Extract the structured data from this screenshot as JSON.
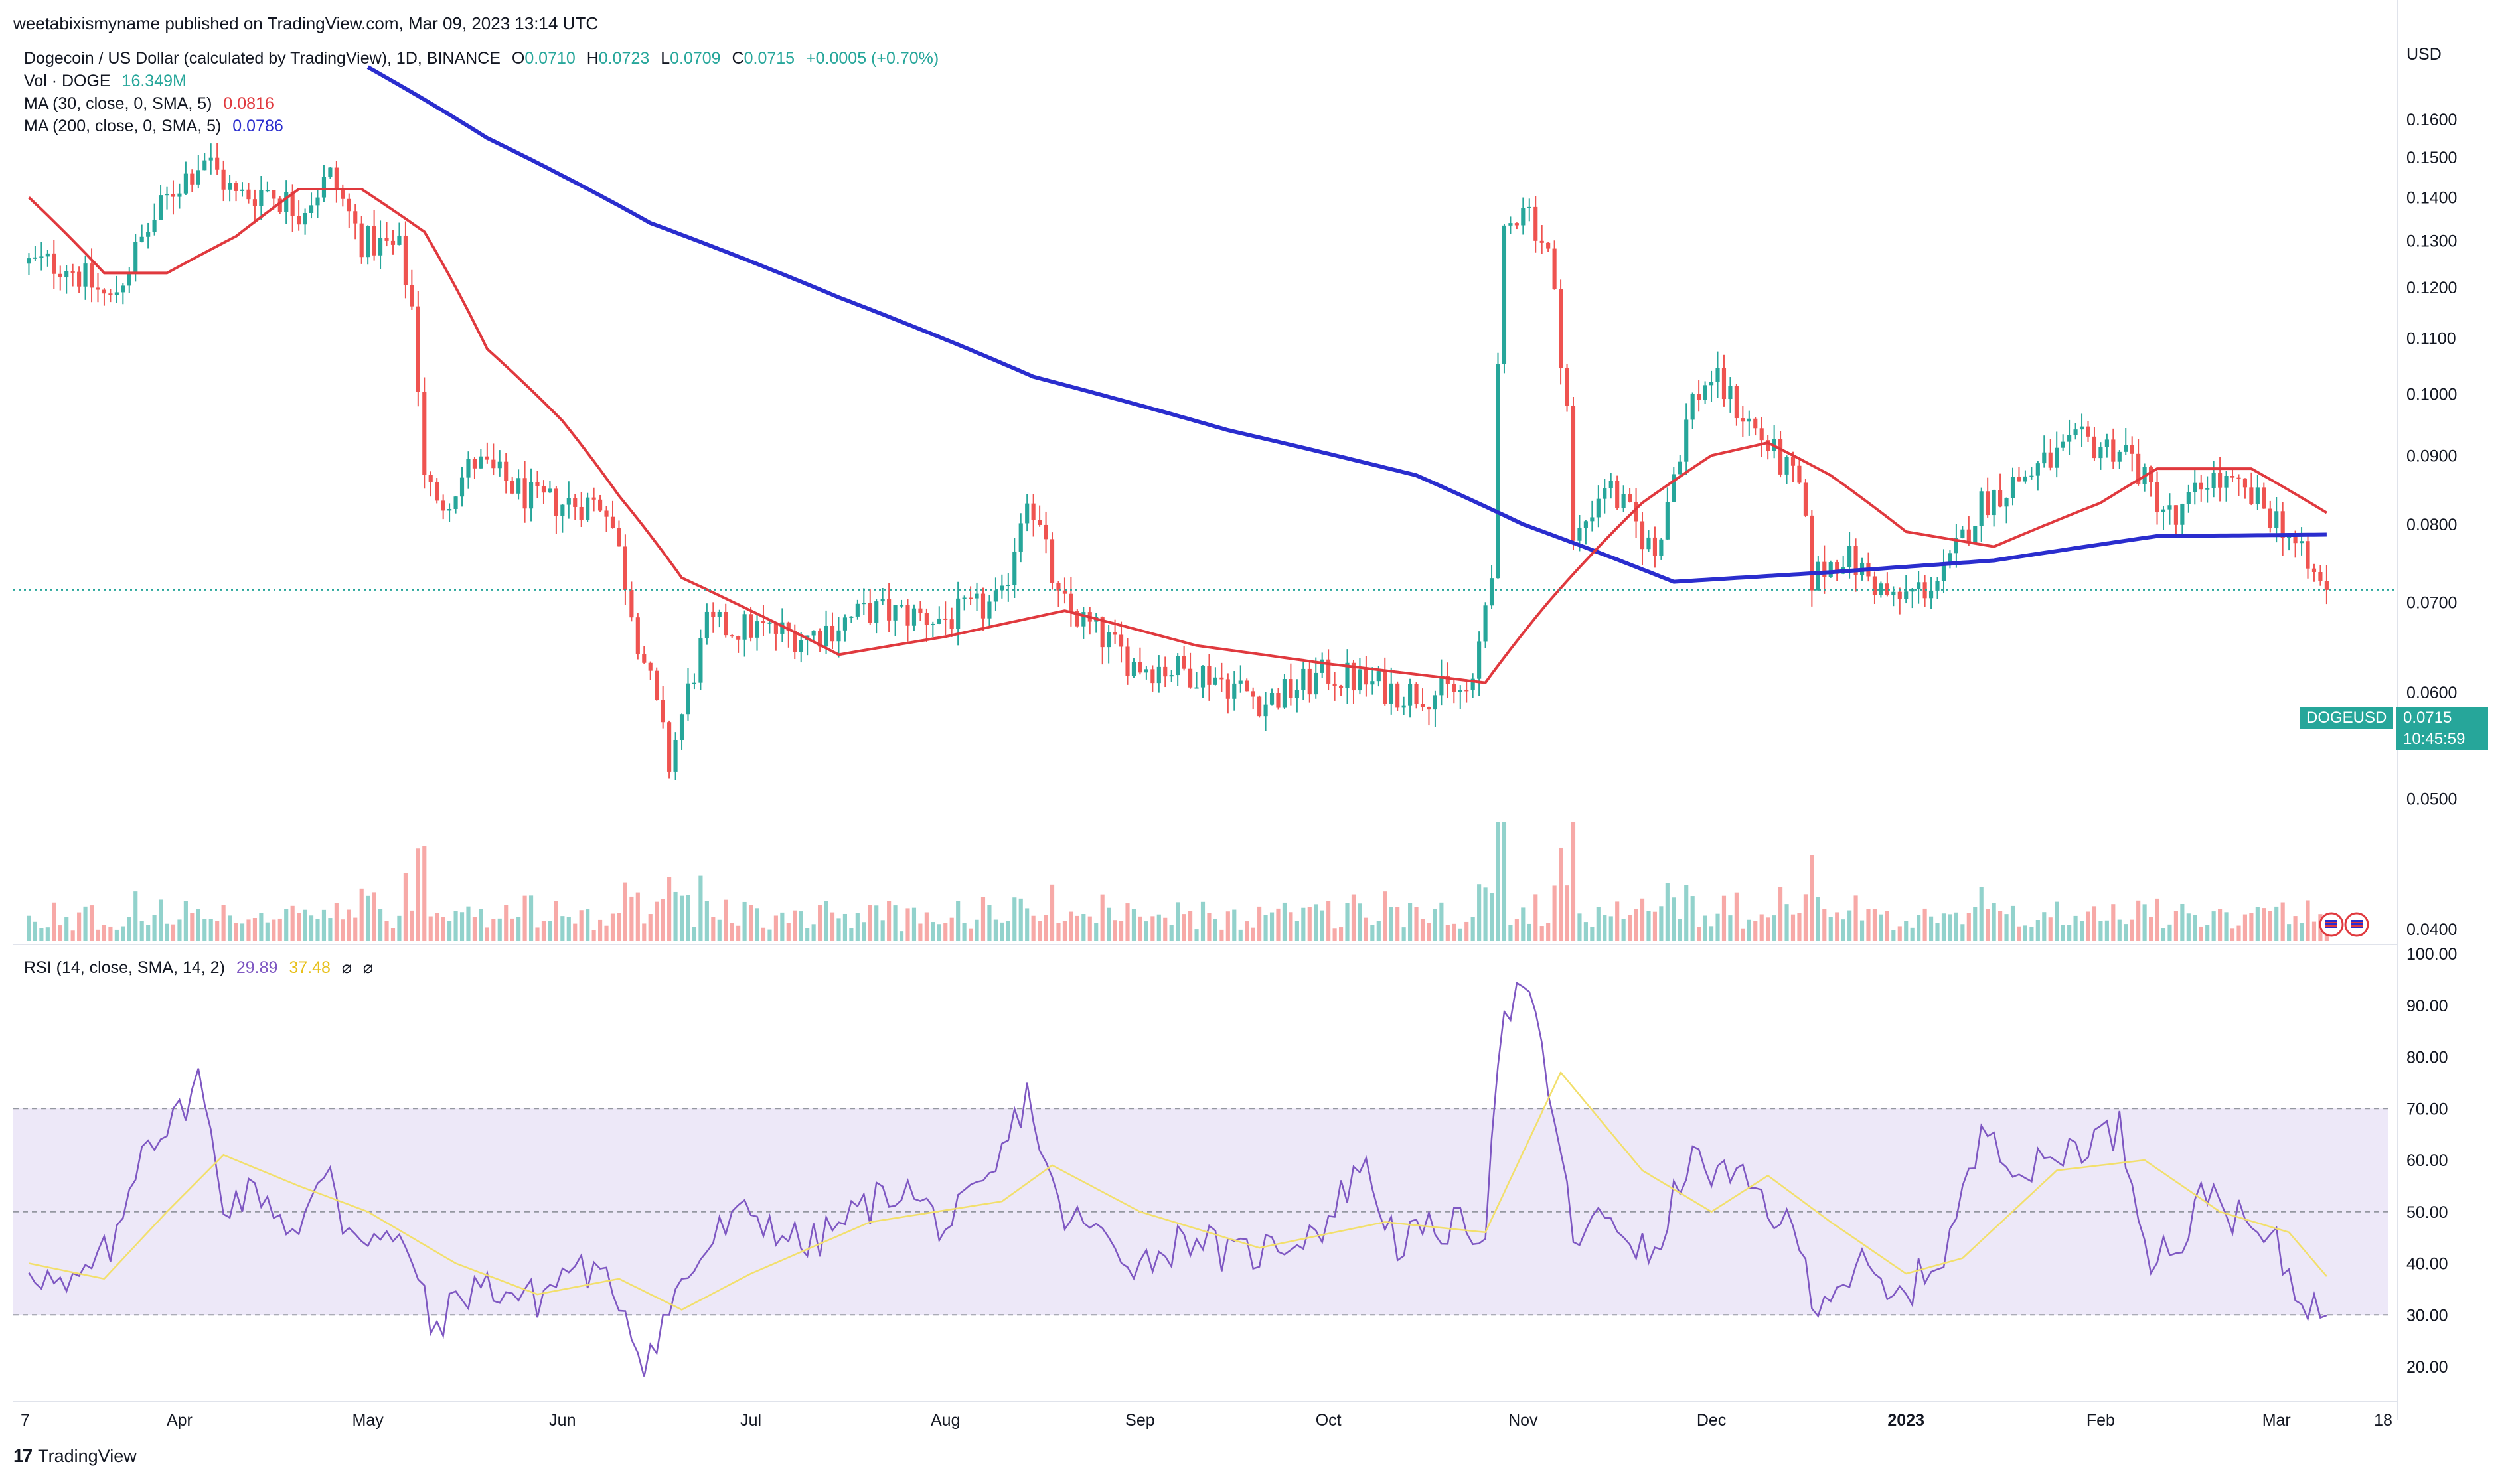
{
  "header": {
    "publisher": "weetabixismyname published on TradingView.com, Mar 09, 2023 13:14 UTC",
    "symbol_title": "Dogecoin / US Dollar (calculated by TradingView), 1D, BINANCE",
    "ohlc": {
      "o_label": "O",
      "o": "0.0710",
      "h_label": "H",
      "h": "0.0723",
      "l_label": "L",
      "l": "0.0709",
      "c_label": "C",
      "c": "0.0715",
      "change": "+0.0005 (+0.70%)"
    },
    "vol_label": "Vol · DOGE",
    "vol_value": "16.349M",
    "ma30_label": "MA (30, close, 0, SMA, 5)",
    "ma30_value": "0.0816",
    "ma200_label": "MA (200, close, 0, SMA, 5)",
    "ma200_value": "0.0786",
    "rsi_label": "RSI (14, close, SMA, 14, 2)",
    "rsi_value": "29.89",
    "rsi_ma_value": "37.48",
    "hidden_icon_1": "⌀",
    "hidden_icon_2": "⌀"
  },
  "axis": {
    "currency": "USD",
    "symbol_badge": "DOGEUSD",
    "last_price": "0.0715",
    "countdown": "10:45:59"
  },
  "footer": {
    "brand": "TradingView",
    "logo_icon": "tradingview-logo-icon"
  },
  "colors": {
    "up": "#26a69a",
    "down": "#ef5350",
    "ma30": "#e0393e",
    "ma200": "#2a2dce",
    "rsi": "#7e57c2",
    "rsi_ma": "#f2df6b",
    "rsi_band": "#ede8f8"
  },
  "chart_data": [
    {
      "type": "candlestick",
      "title": "Dogecoin / US Dollar (calculated by TradingView), 1D, BINANCE",
      "y_axis": {
        "scale": "log",
        "ticks": [
          "0.0400",
          "0.0500",
          "0.0600",
          "0.0700",
          "0.0800",
          "0.0900",
          "0.1000",
          "0.1100",
          "0.1200",
          "0.1300",
          "0.1400",
          "0.1500",
          "0.1600"
        ],
        "ylim": [
          0.0393,
          0.175
        ]
      },
      "x_axis": {
        "ticks": [
          "7",
          "Apr",
          "May",
          "Jun",
          "Jul",
          "Aug",
          "Sep",
          "Oct",
          "Nov",
          "Dec",
          "2023",
          "Feb",
          "Mar",
          "18"
        ]
      },
      "price_anchors": [
        {
          "date": "2022-03-14",
          "close": 0.125
        },
        {
          "date": "2022-03-21",
          "close": 0.117
        },
        {
          "date": "2022-03-26",
          "close": 0.13
        },
        {
          "date": "2022-03-31",
          "close": 0.142
        },
        {
          "date": "2022-04-05",
          "close": 0.15
        },
        {
          "date": "2022-04-10",
          "close": 0.14
        },
        {
          "date": "2022-04-15",
          "close": 0.142
        },
        {
          "date": "2022-04-20",
          "close": 0.137
        },
        {
          "date": "2022-04-25",
          "close": 0.145
        },
        {
          "date": "2022-04-30",
          "close": 0.13
        },
        {
          "date": "2022-05-06",
          "close": 0.128
        },
        {
          "date": "2022-05-08",
          "close": 0.116
        },
        {
          "date": "2022-05-10",
          "close": 0.088
        },
        {
          "date": "2022-05-12",
          "close": 0.082
        },
        {
          "date": "2022-05-18",
          "close": 0.089
        },
        {
          "date": "2022-05-28",
          "close": 0.083
        },
        {
          "date": "2022-06-08",
          "close": 0.083
        },
        {
          "date": "2022-06-13",
          "close": 0.066
        },
        {
          "date": "2022-06-18",
          "close": 0.053
        },
        {
          "date": "2022-06-24",
          "close": 0.067
        },
        {
          "date": "2022-07-01",
          "close": 0.067
        },
        {
          "date": "2022-07-10",
          "close": 0.066
        },
        {
          "date": "2022-07-20",
          "close": 0.069
        },
        {
          "date": "2022-08-01",
          "close": 0.068
        },
        {
          "date": "2022-08-10",
          "close": 0.07
        },
        {
          "date": "2022-08-14",
          "close": 0.085
        },
        {
          "date": "2022-08-19",
          "close": 0.07
        },
        {
          "date": "2022-08-31",
          "close": 0.063
        },
        {
          "date": "2022-09-12",
          "close": 0.062
        },
        {
          "date": "2022-09-21",
          "close": 0.059
        },
        {
          "date": "2022-10-01",
          "close": 0.062
        },
        {
          "date": "2022-10-13",
          "close": 0.06
        },
        {
          "date": "2022-10-24",
          "close": 0.06
        },
        {
          "date": "2022-10-27",
          "close": 0.075
        },
        {
          "date": "2022-10-29",
          "close": 0.13
        },
        {
          "date": "2022-11-01",
          "close": 0.14
        },
        {
          "date": "2022-11-05",
          "close": 0.127
        },
        {
          "date": "2022-11-08",
          "close": 0.098
        },
        {
          "date": "2022-11-09",
          "close": 0.077
        },
        {
          "date": "2022-11-14",
          "close": 0.086
        },
        {
          "date": "2022-11-22",
          "close": 0.076
        },
        {
          "date": "2022-11-28",
          "close": 0.099
        },
        {
          "date": "2022-12-01",
          "close": 0.103
        },
        {
          "date": "2022-12-08",
          "close": 0.094
        },
        {
          "date": "2022-12-15",
          "close": 0.085
        },
        {
          "date": "2022-12-17",
          "close": 0.073
        },
        {
          "date": "2022-12-22",
          "close": 0.076
        },
        {
          "date": "2022-12-30",
          "close": 0.07
        },
        {
          "date": "2023-01-07",
          "close": 0.073
        },
        {
          "date": "2023-01-13",
          "close": 0.083
        },
        {
          "date": "2023-01-20",
          "close": 0.087
        },
        {
          "date": "2023-01-29",
          "close": 0.092
        },
        {
          "date": "2023-02-05",
          "close": 0.091
        },
        {
          "date": "2023-02-08",
          "close": 0.086
        },
        {
          "date": "2023-02-13",
          "close": 0.08
        },
        {
          "date": "2023-02-18",
          "close": 0.087
        },
        {
          "date": "2023-02-26",
          "close": 0.083
        },
        {
          "date": "2023-03-02",
          "close": 0.08
        },
        {
          "date": "2023-03-06",
          "close": 0.074
        },
        {
          "date": "2023-03-09",
          "close": 0.0715
        }
      ],
      "ma30_anchors": [
        {
          "date": "2022-03-08",
          "value": 0.14
        },
        {
          "date": "2022-03-20",
          "value": 0.123
        },
        {
          "date": "2022-03-30",
          "value": 0.123
        },
        {
          "date": "2022-04-10",
          "value": 0.131
        },
        {
          "date": "2022-04-20",
          "value": 0.142
        },
        {
          "date": "2022-04-30",
          "value": 0.142
        },
        {
          "date": "2022-05-10",
          "value": 0.132
        },
        {
          "date": "2022-05-20",
          "value": 0.108
        },
        {
          "date": "2022-06-01",
          "value": 0.0955
        },
        {
          "date": "2022-06-10",
          "value": 0.084
        },
        {
          "date": "2022-06-20",
          "value": 0.073
        },
        {
          "date": "2022-07-01",
          "value": 0.069
        },
        {
          "date": "2022-07-15",
          "value": 0.064
        },
        {
          "date": "2022-08-01",
          "value": 0.066
        },
        {
          "date": "2022-08-20",
          "value": 0.069
        },
        {
          "date": "2022-09-10",
          "value": 0.065
        },
        {
          "date": "2022-10-01",
          "value": 0.063
        },
        {
          "date": "2022-10-26",
          "value": 0.061
        },
        {
          "date": "2022-11-05",
          "value": 0.07
        },
        {
          "date": "2022-11-20",
          "value": 0.083
        },
        {
          "date": "2022-12-01",
          "value": 0.09
        },
        {
          "date": "2022-12-10",
          "value": 0.092
        },
        {
          "date": "2022-12-20",
          "value": 0.087
        },
        {
          "date": "2023-01-01",
          "value": 0.079
        },
        {
          "date": "2023-01-15",
          "value": 0.077
        },
        {
          "date": "2023-02-01",
          "value": 0.083
        },
        {
          "date": "2023-02-10",
          "value": 0.088
        },
        {
          "date": "2023-02-25",
          "value": 0.088
        },
        {
          "date": "2023-03-09",
          "value": 0.0816
        }
      ],
      "ma200_anchors": [
        {
          "date": "2022-05-01",
          "value": 0.175
        },
        {
          "date": "2022-05-20",
          "value": 0.155
        },
        {
          "date": "2022-06-15",
          "value": 0.134
        },
        {
          "date": "2022-07-15",
          "value": 0.118
        },
        {
          "date": "2022-08-15",
          "value": 0.103
        },
        {
          "date": "2022-09-15",
          "value": 0.094
        },
        {
          "date": "2022-10-15",
          "value": 0.087
        },
        {
          "date": "2022-11-01",
          "value": 0.08
        },
        {
          "date": "2022-11-25",
          "value": 0.0725
        },
        {
          "date": "2022-12-20",
          "value": 0.0737
        },
        {
          "date": "2023-01-15",
          "value": 0.0752
        },
        {
          "date": "2023-02-10",
          "value": 0.0784
        },
        {
          "date": "2023-03-09",
          "value": 0.0786
        }
      ],
      "last_price": 0.0715,
      "volume_last": "16.349M"
    },
    {
      "type": "line",
      "title": "RSI (14, close, SMA, 14, 2)",
      "y_axis": {
        "ticks": [
          "20.00",
          "30.00",
          "40.00",
          "50.00",
          "60.00",
          "70.00",
          "80.00",
          "90.00",
          "100.00"
        ],
        "ylim": [
          15,
          100
        ]
      },
      "bands": {
        "upper": 70,
        "middle": 50,
        "lower": 30
      },
      "rsi_anchors": [
        {
          "date": "2022-03-08",
          "value": 40
        },
        {
          "date": "2022-03-14",
          "value": 34
        },
        {
          "date": "2022-03-22",
          "value": 44
        },
        {
          "date": "2022-03-26",
          "value": 64
        },
        {
          "date": "2022-03-31",
          "value": 67
        },
        {
          "date": "2022-04-04",
          "value": 76
        },
        {
          "date": "2022-04-08",
          "value": 52
        },
        {
          "date": "2022-04-14",
          "value": 54
        },
        {
          "date": "2022-04-20",
          "value": 45
        },
        {
          "date": "2022-04-25",
          "value": 60
        },
        {
          "date": "2022-04-27",
          "value": 48
        },
        {
          "date": "2022-05-08",
          "value": 42
        },
        {
          "date": "2022-05-11",
          "value": 27
        },
        {
          "date": "2022-05-18",
          "value": 36
        },
        {
          "date": "2022-05-28",
          "value": 33
        },
        {
          "date": "2022-06-03",
          "value": 40
        },
        {
          "date": "2022-06-10",
          "value": 34
        },
        {
          "date": "2022-06-14",
          "value": 21
        },
        {
          "date": "2022-06-20",
          "value": 36
        },
        {
          "date": "2022-06-26",
          "value": 46
        },
        {
          "date": "2022-07-01",
          "value": 50
        },
        {
          "date": "2022-07-10",
          "value": 43
        },
        {
          "date": "2022-07-18",
          "value": 50
        },
        {
          "date": "2022-07-25",
          "value": 55
        },
        {
          "date": "2022-08-01",
          "value": 47
        },
        {
          "date": "2022-08-08",
          "value": 55
        },
        {
          "date": "2022-08-14",
          "value": 73
        },
        {
          "date": "2022-08-19",
          "value": 50
        },
        {
          "date": "2022-08-25",
          "value": 46
        },
        {
          "date": "2022-09-01",
          "value": 40
        },
        {
          "date": "2022-09-10",
          "value": 46
        },
        {
          "date": "2022-09-15",
          "value": 41
        },
        {
          "date": "2022-09-22",
          "value": 43
        },
        {
          "date": "2022-10-01",
          "value": 48
        },
        {
          "date": "2022-10-06",
          "value": 60
        },
        {
          "date": "2022-10-12",
          "value": 44
        },
        {
          "date": "2022-10-20",
          "value": 47
        },
        {
          "date": "2022-10-26",
          "value": 47
        },
        {
          "date": "2022-10-28",
          "value": 82
        },
        {
          "date": "2022-10-31",
          "value": 93
        },
        {
          "date": "2022-11-03",
          "value": 87
        },
        {
          "date": "2022-11-06",
          "value": 68
        },
        {
          "date": "2022-11-09",
          "value": 45
        },
        {
          "date": "2022-11-15",
          "value": 49
        },
        {
          "date": "2022-11-22",
          "value": 40
        },
        {
          "date": "2022-11-27",
          "value": 60
        },
        {
          "date": "2022-12-01",
          "value": 58
        },
        {
          "date": "2022-12-08",
          "value": 54
        },
        {
          "date": "2022-12-15",
          "value": 44
        },
        {
          "date": "2022-12-17",
          "value": 33
        },
        {
          "date": "2022-12-25",
          "value": 39
        },
        {
          "date": "2022-12-30",
          "value": 32
        },
        {
          "date": "2023-01-07",
          "value": 42
        },
        {
          "date": "2023-01-14",
          "value": 67
        },
        {
          "date": "2023-01-20",
          "value": 57
        },
        {
          "date": "2023-01-28",
          "value": 63
        },
        {
          "date": "2023-02-04",
          "value": 66
        },
        {
          "date": "2023-02-09",
          "value": 42
        },
        {
          "date": "2023-02-14",
          "value": 44
        },
        {
          "date": "2023-02-18",
          "value": 55
        },
        {
          "date": "2023-02-24",
          "value": 47
        },
        {
          "date": "2023-03-01",
          "value": 43
        },
        {
          "date": "2023-03-04",
          "value": 35
        },
        {
          "date": "2023-03-09",
          "value": 29.89
        }
      ],
      "rsi_ma_anchors": [
        {
          "date": "2022-03-08",
          "value": 40
        },
        {
          "date": "2022-03-20",
          "value": 37
        },
        {
          "date": "2022-03-30",
          "value": 50
        },
        {
          "date": "2022-04-08",
          "value": 61
        },
        {
          "date": "2022-04-20",
          "value": 55
        },
        {
          "date": "2022-05-01",
          "value": 50
        },
        {
          "date": "2022-05-15",
          "value": 40
        },
        {
          "date": "2022-05-28",
          "value": 34
        },
        {
          "date": "2022-06-10",
          "value": 37
        },
        {
          "date": "2022-06-20",
          "value": 31
        },
        {
          "date": "2022-07-01",
          "value": 38
        },
        {
          "date": "2022-07-20",
          "value": 48
        },
        {
          "date": "2022-08-10",
          "value": 52
        },
        {
          "date": "2022-08-18",
          "value": 59
        },
        {
          "date": "2022-09-01",
          "value": 50
        },
        {
          "date": "2022-09-20",
          "value": 43
        },
        {
          "date": "2022-10-10",
          "value": 48
        },
        {
          "date": "2022-10-26",
          "value": 46
        },
        {
          "date": "2022-11-07",
          "value": 77
        },
        {
          "date": "2022-11-20",
          "value": 58
        },
        {
          "date": "2022-12-01",
          "value": 50
        },
        {
          "date": "2022-12-10",
          "value": 57
        },
        {
          "date": "2022-12-20",
          "value": 48
        },
        {
          "date": "2023-01-01",
          "value": 38
        },
        {
          "date": "2023-01-10",
          "value": 41
        },
        {
          "date": "2023-01-25",
          "value": 58
        },
        {
          "date": "2023-02-08",
          "value": 60
        },
        {
          "date": "2023-02-20",
          "value": 50
        },
        {
          "date": "2023-03-03",
          "value": 46
        },
        {
          "date": "2023-03-09",
          "value": 37.48
        }
      ]
    }
  ]
}
